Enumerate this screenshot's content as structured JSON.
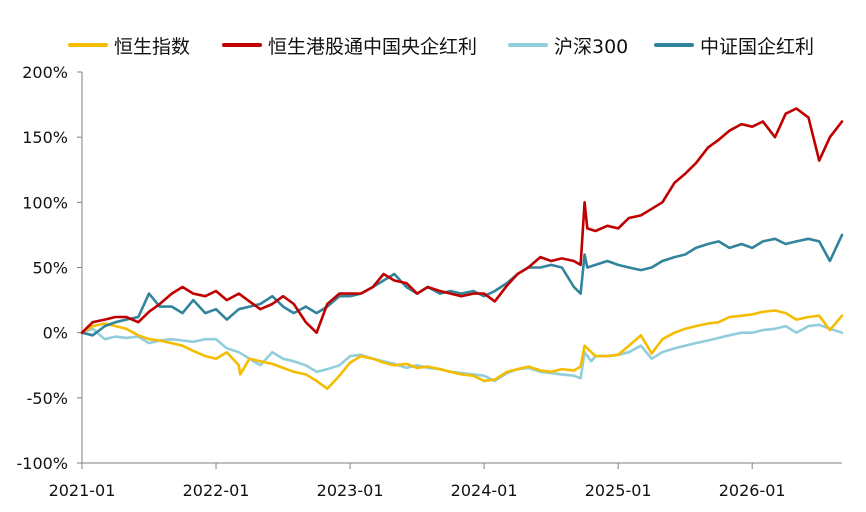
{
  "chart_data": {
    "type": "line",
    "title": "",
    "xlabel": "",
    "ylabel": "",
    "ylim": [
      -100,
      200
    ],
    "y_unit": "%",
    "y_ticks": [
      "200%",
      "150%",
      "100%",
      "50%",
      "0%",
      "-50%",
      "-100%"
    ],
    "y_tick_values": [
      200,
      150,
      100,
      50,
      0,
      -50,
      -100
    ],
    "x_ticks": [
      "2021-01",
      "2022-01",
      "2023-01",
      "2024-01",
      "2025-01",
      "2026-01"
    ],
    "x_tick_values": [
      2021.0,
      2022.0,
      2023.0,
      2024.0,
      2025.0,
      2026.0
    ],
    "xlim": [
      2021.0,
      2026.67
    ],
    "legend_position": "top",
    "grid": false,
    "series": [
      {
        "name": "恒生指数",
        "color": "#f5bd00",
        "x": [
          2021.0,
          2021.08,
          2021.17,
          2021.25,
          2021.33,
          2021.42,
          2021.5,
          2021.58,
          2021.67,
          2021.75,
          2021.83,
          2021.92,
          2022.0,
          2022.08,
          2022.17,
          2022.18,
          2022.25,
          2022.33,
          2022.42,
          2022.5,
          2022.58,
          2022.67,
          2022.75,
          2022.83,
          2022.92,
          2023.0,
          2023.08,
          2023.17,
          2023.25,
          2023.33,
          2023.42,
          2023.5,
          2023.58,
          2023.67,
          2023.75,
          2023.83,
          2023.92,
          2024.0,
          2024.08,
          2024.17,
          2024.25,
          2024.33,
          2024.42,
          2024.5,
          2024.58,
          2024.67,
          2024.72,
          2024.75,
          2024.8,
          2024.83,
          2024.92,
          2025.0,
          2025.08,
          2025.17,
          2025.25,
          2025.33,
          2025.42,
          2025.5,
          2025.58,
          2025.67,
          2025.75,
          2025.83,
          2025.92,
          2026.0,
          2026.08,
          2026.17,
          2026.25,
          2026.33,
          2026.42,
          2026.5,
          2026.58,
          2026.67
        ],
        "values": [
          0,
          5,
          7,
          5,
          3,
          -2,
          -5,
          -6,
          -8,
          -10,
          -14,
          -18,
          -20,
          -15,
          -25,
          -32,
          -20,
          -22,
          -24,
          -27,
          -30,
          -32,
          -37,
          -43,
          -33,
          -23,
          -18,
          -20,
          -23,
          -25,
          -24,
          -27,
          -26,
          -28,
          -30,
          -32,
          -33,
          -37,
          -36,
          -30,
          -28,
          -26,
          -29,
          -30,
          -28,
          -29,
          -26,
          -10,
          -15,
          -18,
          -18,
          -17,
          -10,
          -2,
          -16,
          -5,
          0,
          3,
          5,
          7,
          8,
          12,
          13,
          14,
          16,
          17,
          15,
          10,
          12,
          13,
          2,
          13
        ]
      },
      {
        "name": "恒生港股通中国央企红利",
        "color": "#c00000",
        "x": [
          2021.0,
          2021.08,
          2021.17,
          2021.25,
          2021.33,
          2021.42,
          2021.5,
          2021.58,
          2021.67,
          2021.75,
          2021.83,
          2021.92,
          2022.0,
          2022.08,
          2022.17,
          2022.25,
          2022.33,
          2022.42,
          2022.5,
          2022.58,
          2022.67,
          2022.75,
          2022.83,
          2022.92,
          2023.0,
          2023.08,
          2023.17,
          2023.25,
          2023.33,
          2023.42,
          2023.5,
          2023.58,
          2023.67,
          2023.75,
          2023.83,
          2023.92,
          2024.0,
          2024.08,
          2024.17,
          2024.25,
          2024.33,
          2024.42,
          2024.5,
          2024.58,
          2024.67,
          2024.72,
          2024.75,
          2024.77,
          2024.83,
          2024.92,
          2025.0,
          2025.08,
          2025.17,
          2025.25,
          2025.33,
          2025.42,
          2025.5,
          2025.58,
          2025.67,
          2025.75,
          2025.83,
          2025.92,
          2026.0,
          2026.08,
          2026.17,
          2026.25,
          2026.33,
          2026.42,
          2026.5,
          2026.58,
          2026.67
        ],
        "values": [
          0,
          8,
          10,
          12,
          12,
          8,
          16,
          22,
          30,
          35,
          30,
          28,
          32,
          25,
          30,
          24,
          18,
          22,
          28,
          22,
          8,
          0,
          22,
          30,
          30,
          30,
          35,
          45,
          40,
          38,
          30,
          35,
          32,
          30,
          28,
          30,
          30,
          24,
          36,
          45,
          50,
          58,
          55,
          57,
          55,
          52,
          100,
          80,
          78,
          82,
          80,
          88,
          90,
          95,
          100,
          115,
          122,
          130,
          142,
          148,
          155,
          160,
          158,
          162,
          150,
          168,
          172,
          165,
          132,
          150,
          162
        ]
      },
      {
        "name": "沪深300",
        "color": "#92cddc",
        "x": [
          2021.0,
          2021.08,
          2021.17,
          2021.25,
          2021.33,
          2021.42,
          2021.5,
          2021.58,
          2021.67,
          2021.75,
          2021.83,
          2021.92,
          2022.0,
          2022.08,
          2022.17,
          2022.25,
          2022.33,
          2022.42,
          2022.5,
          2022.58,
          2022.67,
          2022.75,
          2022.83,
          2022.92,
          2023.0,
          2023.08,
          2023.17,
          2023.25,
          2023.33,
          2023.42,
          2023.5,
          2023.58,
          2023.67,
          2023.75,
          2023.83,
          2023.92,
          2024.0,
          2024.08,
          2024.17,
          2024.25,
          2024.33,
          2024.42,
          2024.5,
          2024.58,
          2024.67,
          2024.72,
          2024.75,
          2024.8,
          2024.83,
          2024.92,
          2025.0,
          2025.08,
          2025.17,
          2025.25,
          2025.33,
          2025.42,
          2025.5,
          2025.58,
          2025.67,
          2025.75,
          2025.83,
          2025.92,
          2026.0,
          2026.08,
          2026.17,
          2026.25,
          2026.33,
          2026.42,
          2026.5,
          2026.58,
          2026.67
        ],
        "values": [
          0,
          3,
          -5,
          -3,
          -4,
          -3,
          -8,
          -6,
          -5,
          -6,
          -7,
          -5,
          -5,
          -12,
          -15,
          -20,
          -25,
          -15,
          -20,
          -22,
          -25,
          -30,
          -28,
          -25,
          -18,
          -17,
          -20,
          -22,
          -24,
          -27,
          -25,
          -27,
          -28,
          -30,
          -31,
          -32,
          -33,
          -37,
          -31,
          -28,
          -27,
          -30,
          -31,
          -32,
          -33,
          -35,
          -15,
          -22,
          -18,
          -18,
          -17,
          -15,
          -10,
          -20,
          -15,
          -12,
          -10,
          -8,
          -6,
          -4,
          -2,
          0,
          0,
          2,
          3,
          5,
          0,
          5,
          6,
          3,
          0
        ]
      },
      {
        "name": "中证国企红利",
        "color": "#31849b",
        "x": [
          2021.0,
          2021.08,
          2021.17,
          2021.25,
          2021.33,
          2021.42,
          2021.5,
          2021.58,
          2021.67,
          2021.75,
          2021.83,
          2021.92,
          2022.0,
          2022.08,
          2022.17,
          2022.25,
          2022.33,
          2022.42,
          2022.5,
          2022.58,
          2022.67,
          2022.75,
          2022.83,
          2022.92,
          2023.0,
          2023.08,
          2023.17,
          2023.25,
          2023.33,
          2023.42,
          2023.5,
          2023.58,
          2023.67,
          2023.75,
          2023.83,
          2023.92,
          2024.0,
          2024.08,
          2024.17,
          2024.25,
          2024.33,
          2024.42,
          2024.5,
          2024.58,
          2024.67,
          2024.72,
          2024.75,
          2024.77,
          2024.83,
          2024.92,
          2025.0,
          2025.08,
          2025.17,
          2025.25,
          2025.33,
          2025.42,
          2025.5,
          2025.58,
          2025.67,
          2025.75,
          2025.83,
          2025.92,
          2026.0,
          2026.08,
          2026.17,
          2026.25,
          2026.33,
          2026.42,
          2026.5,
          2026.58,
          2026.67
        ],
        "values": [
          0,
          -2,
          5,
          8,
          10,
          12,
          30,
          20,
          20,
          15,
          25,
          15,
          18,
          10,
          18,
          20,
          22,
          28,
          20,
          15,
          20,
          15,
          20,
          28,
          28,
          30,
          35,
          40,
          45,
          35,
          30,
          35,
          30,
          32,
          30,
          32,
          28,
          32,
          38,
          45,
          50,
          50,
          52,
          50,
          35,
          30,
          60,
          50,
          52,
          55,
          52,
          50,
          48,
          50,
          55,
          58,
          60,
          65,
          68,
          70,
          65,
          68,
          65,
          70,
          72,
          68,
          70,
          72,
          70,
          55,
          75
        ]
      }
    ]
  }
}
